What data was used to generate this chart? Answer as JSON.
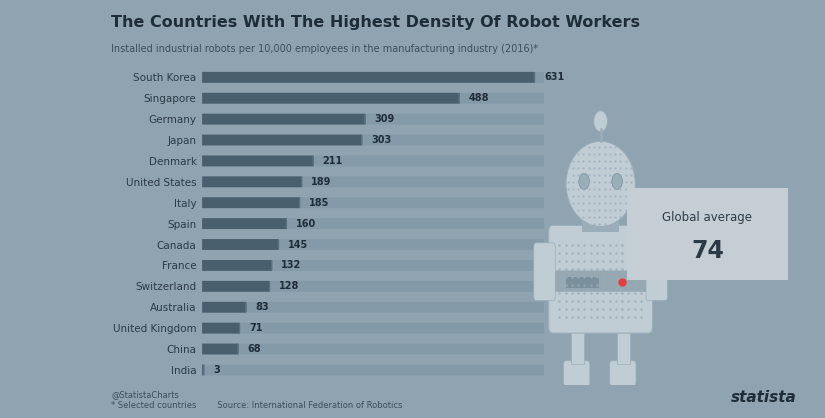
{
  "title": "The Countries With The Highest Density Of Robot Workers",
  "subtitle": "Installed industrial robots per 10,000 employees in the manufacturing industry (2016)*",
  "countries": [
    "South Korea",
    "Singapore",
    "Germany",
    "Japan",
    "Denmark",
    "United States",
    "Italy",
    "Spain",
    "Canada",
    "France",
    "Switzerland",
    "Australia",
    "United Kingdom",
    "China",
    "India"
  ],
  "values": [
    631,
    488,
    309,
    303,
    211,
    189,
    185,
    160,
    145,
    132,
    128,
    83,
    71,
    68,
    3
  ],
  "bar_color": "#4a5f6e",
  "bar_track_color": "#7a919e",
  "background_color": "#8fa3b1",
  "text_color": "#2b3a47",
  "title_color": "#1e2d38",
  "subtitle_color": "#3a4f5c",
  "value_color": "#1e2d38",
  "circle_face": "#8fa3b1",
  "circle_edge": "#5a7080",
  "bubble_color": "#c5ced5",
  "robot_light": "#c0cdd5",
  "robot_mid": "#9aadb8",
  "robot_dark": "#7a909c",
  "global_average": 74,
  "footer_left": "* Selected countries",
  "footer_source": "Source: International Federation of Robotics",
  "footer_handle": "@StatistaCharts",
  "max_bar": 650
}
